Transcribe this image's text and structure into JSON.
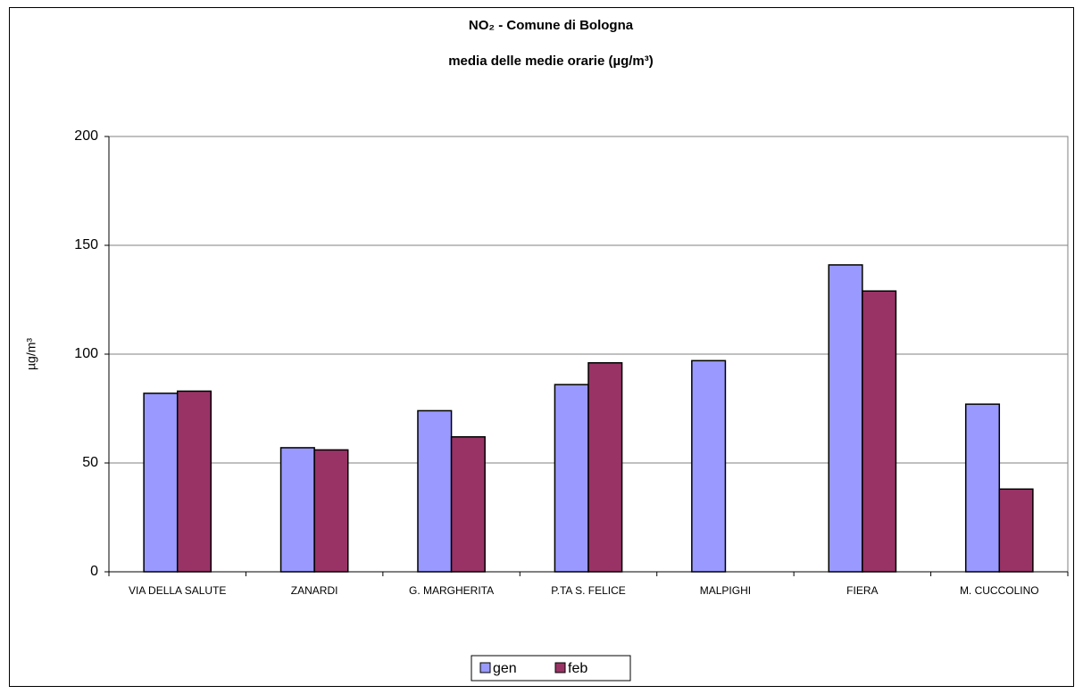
{
  "chart_data": {
    "type": "bar",
    "title": "NO₂ - Comune di Bologna",
    "subtitle": "media delle medie orarie (µg/m³)",
    "y_label": "µg/m³",
    "categories": [
      "VIA DELLA SALUTE",
      "ZANARDI",
      "G. MARGHERITA",
      "P.TA S. FELICE",
      "MALPIGHI",
      "FIERA",
      "M. CUCCOLINO"
    ],
    "series": [
      {
        "name": "gen",
        "color": "#9999ff",
        "values": [
          82,
          57,
          74,
          86,
          97,
          141,
          77
        ]
      },
      {
        "name": "feb",
        "color": "#993366",
        "values": [
          83,
          56,
          62,
          96,
          null,
          129,
          38
        ]
      }
    ],
    "ylim": [
      0,
      200
    ],
    "yticks": [
      0,
      50,
      100,
      150,
      200
    ],
    "grid": true,
    "legend": "bottom"
  }
}
